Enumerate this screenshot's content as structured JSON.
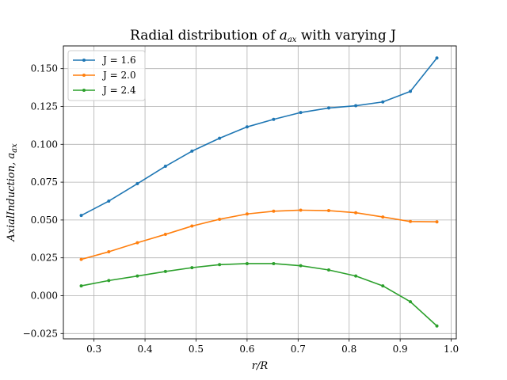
{
  "chart_data": {
    "type": "line",
    "title_prefix": "Radial distribution of ",
    "title_var": "a",
    "title_sub": "ax",
    "title_suffix": " with varying J",
    "xlabel": "r/R",
    "ylabel_prefix": "AxialInduction, ",
    "ylabel_var": "a",
    "ylabel_sub": "ax",
    "xlim": [
      0.24,
      1.01
    ],
    "ylim": [
      -0.0285,
      0.165
    ],
    "xticks": [
      0.3,
      0.4,
      0.5,
      0.6,
      0.7,
      0.8,
      0.9,
      1.0
    ],
    "xtick_labels": [
      "0.3",
      "0.4",
      "0.5",
      "0.6",
      "0.7",
      "0.8",
      "0.9",
      "1.0"
    ],
    "yticks": [
      -0.025,
      0.0,
      0.025,
      0.05,
      0.075,
      0.1,
      0.125,
      0.15
    ],
    "ytick_labels": [
      "−0.025",
      "0.000",
      "0.025",
      "0.050",
      "0.075",
      "0.100",
      "0.125",
      "0.150"
    ],
    "grid": true,
    "legend_position": "top-left",
    "x": [
      0.275,
      0.329,
      0.385,
      0.44,
      0.492,
      0.546,
      0.6,
      0.652,
      0.705,
      0.76,
      0.813,
      0.866,
      0.92,
      0.972
    ],
    "series": [
      {
        "name": "J = 1.6",
        "color": "#1f77b4",
        "values": [
          0.053,
          0.0625,
          0.074,
          0.0855,
          0.0955,
          0.104,
          0.1115,
          0.1165,
          0.121,
          0.124,
          0.1255,
          0.128,
          0.135,
          0.157
        ]
      },
      {
        "name": "J = 2.0",
        "color": "#ff7f0e",
        "values": [
          0.024,
          0.029,
          0.035,
          0.0405,
          0.046,
          0.0505,
          0.054,
          0.0558,
          0.0565,
          0.0562,
          0.0548,
          0.052,
          0.049,
          0.0488
        ]
      },
      {
        "name": "J = 2.4",
        "color": "#2ca02c",
        "values": [
          0.0065,
          0.01,
          0.013,
          0.016,
          0.0185,
          0.0205,
          0.0212,
          0.0212,
          0.0198,
          0.017,
          0.013,
          0.0065,
          -0.004,
          -0.02
        ]
      }
    ]
  }
}
